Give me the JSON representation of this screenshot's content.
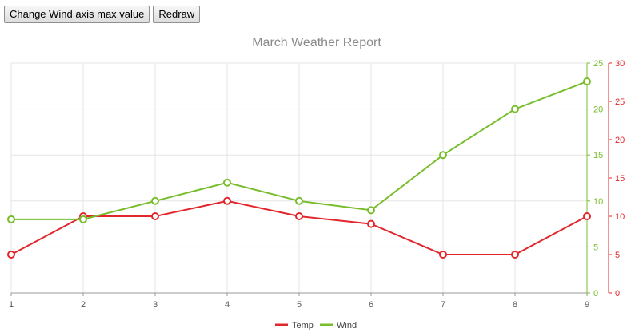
{
  "toolbar": {
    "change_axis_label": "Change Wind axis max value",
    "redraw_label": "Redraw"
  },
  "colors": {
    "temp": "#e3262b",
    "wind": "#78be2c",
    "grid": "#e5e5e5",
    "axis": "#999999"
  },
  "chart_data": {
    "type": "line",
    "title": "March Weather Report",
    "x": [
      1,
      2,
      3,
      4,
      5,
      6,
      7,
      8,
      9
    ],
    "x_tick_labels": [
      "1",
      "2",
      "3",
      "4",
      "5",
      "6",
      "7",
      "8",
      "9"
    ],
    "series": [
      {
        "name": "Temp",
        "axis": "right-outer",
        "color": "#e3262b",
        "values": [
          5,
          10,
          10,
          12,
          10,
          9,
          5,
          5,
          10
        ]
      },
      {
        "name": "Wind",
        "axis": "right-inner",
        "color": "#78be2c",
        "values": [
          8,
          8,
          10,
          12,
          10,
          9,
          15,
          20,
          23
        ]
      }
    ],
    "y_axes": [
      {
        "id": "right-inner",
        "series": "Wind",
        "ylim": [
          0,
          25
        ],
        "ticks": [
          0,
          5,
          10,
          15,
          20,
          25
        ]
      },
      {
        "id": "right-outer",
        "series": "Temp",
        "ylim": [
          0,
          30
        ],
        "ticks": [
          0,
          5,
          10,
          15,
          20,
          25,
          30
        ]
      }
    ],
    "grid": true,
    "legend_position": "bottom-center",
    "legend": [
      "Temp",
      "Wind"
    ]
  }
}
